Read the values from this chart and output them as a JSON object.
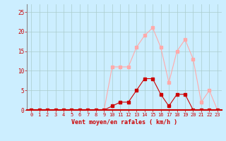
{
  "hours": [
    0,
    1,
    2,
    3,
    4,
    5,
    6,
    7,
    8,
    9,
    10,
    11,
    12,
    13,
    14,
    15,
    16,
    17,
    18,
    19,
    20,
    21,
    22,
    23
  ],
  "wind_mean": [
    0,
    0,
    0,
    0,
    0,
    0,
    0,
    0,
    0,
    0,
    1,
    2,
    2,
    5,
    8,
    8,
    4,
    1,
    4,
    4,
    0,
    0,
    0,
    0
  ],
  "wind_gust": [
    0,
    0,
    0,
    0,
    0,
    0,
    0,
    0,
    0,
    0,
    11,
    11,
    11,
    16,
    19,
    21,
    16,
    7,
    15,
    18,
    13,
    2,
    5,
    0
  ],
  "mean_color": "#cc0000",
  "gust_color": "#ffaaaa",
  "bg_color": "#cceeff",
  "grid_color": "#aacccc",
  "axis_color": "#cc0000",
  "tick_color": "#cc0000",
  "xlabel": "Vent moyen/en rafales ( km/h )",
  "ylim": [
    0,
    27
  ],
  "yticks": [
    0,
    5,
    10,
    15,
    20,
    25
  ]
}
